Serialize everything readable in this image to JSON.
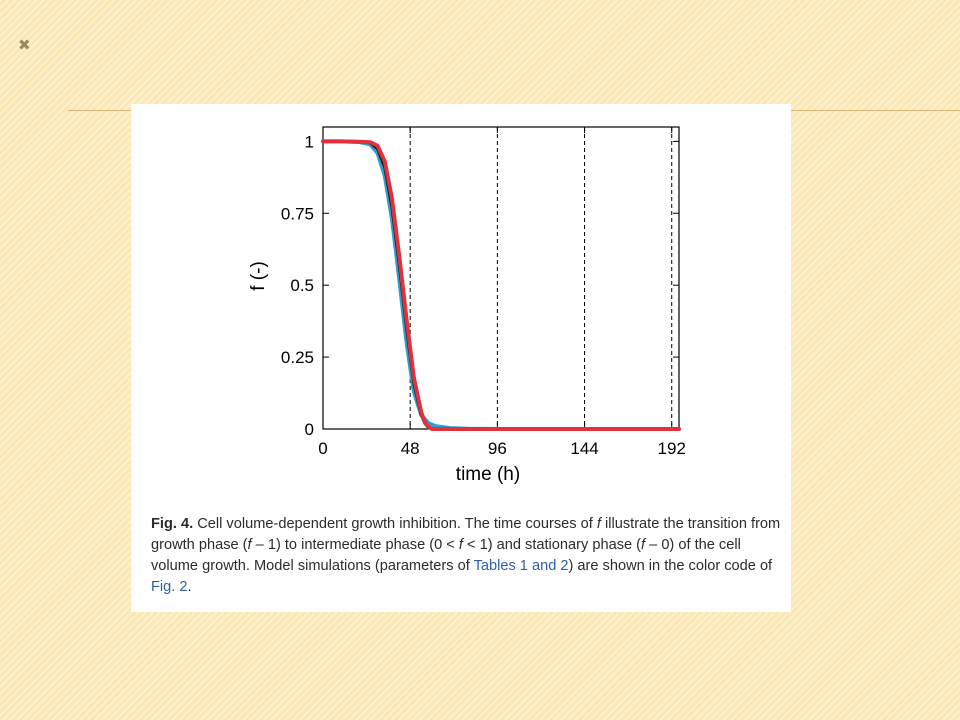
{
  "slide": {
    "mark": "✖"
  },
  "chart_data": {
    "type": "line",
    "xlabel": "time (h)",
    "ylabel": "f (-)",
    "xlim": [
      0,
      196
    ],
    "ylim": [
      0,
      1.05
    ],
    "xticks": [
      0,
      48,
      96,
      144,
      192
    ],
    "yticks": [
      0,
      0.25,
      0.5,
      0.75,
      1
    ],
    "ytick_labels": [
      "0",
      "0.25",
      "0.5",
      "0.75",
      "1"
    ],
    "vlines": [
      48,
      96,
      144,
      192
    ],
    "series": [
      {
        "color": "#2f9fcf",
        "x": [
          0,
          10,
          20,
          26,
          30,
          34,
          38,
          42,
          46,
          50,
          54,
          58,
          62,
          70,
          80,
          96,
          120,
          144,
          170,
          196
        ],
        "y": [
          1,
          1,
          0.998,
          0.99,
          0.96,
          0.88,
          0.73,
          0.52,
          0.3,
          0.13,
          0.05,
          0.02,
          0.01,
          0.003,
          0.001,
          0,
          0,
          0,
          0,
          0
        ]
      },
      {
        "color": "#111111",
        "x": [
          0,
          10,
          20,
          26,
          30,
          34,
          38,
          42,
          46,
          50,
          54,
          56,
          58,
          60,
          64,
          70,
          96,
          144,
          196
        ],
        "y": [
          1,
          1,
          0.999,
          0.995,
          0.975,
          0.91,
          0.77,
          0.57,
          0.35,
          0.16,
          0.05,
          0.02,
          0.005,
          0,
          0,
          0,
          0,
          0,
          0
        ]
      },
      {
        "color": "#e0323c",
        "x": [
          0,
          10,
          20,
          26,
          30,
          34,
          38,
          42,
          46,
          50,
          54,
          56,
          58,
          60,
          64,
          70,
          96,
          144,
          196
        ],
        "y": [
          1,
          1,
          0.999,
          0.997,
          0.985,
          0.93,
          0.8,
          0.6,
          0.38,
          0.18,
          0.06,
          0.025,
          0.007,
          0,
          0,
          0,
          0,
          0,
          0
        ]
      }
    ]
  },
  "caption": {
    "fig_label": "Fig. 4.",
    "part1": " Cell volume-dependent growth inhibition. The time courses of ",
    "f1": "f",
    "part2": " illustrate the transition from growth phase (",
    "f2": "f",
    "part3": " – 1) to intermediate phase (0 < ",
    "f3": "f",
    "part4": " < 1) and stationary phase (",
    "f4": "f",
    "part5": " – 0) of the cell volume growth. Model simulations (parameters of ",
    "ref_tables": "Tables 1 and 2",
    "part6": ") are shown in the color code of ",
    "ref_fig": "Fig. 2",
    "part7": "."
  }
}
